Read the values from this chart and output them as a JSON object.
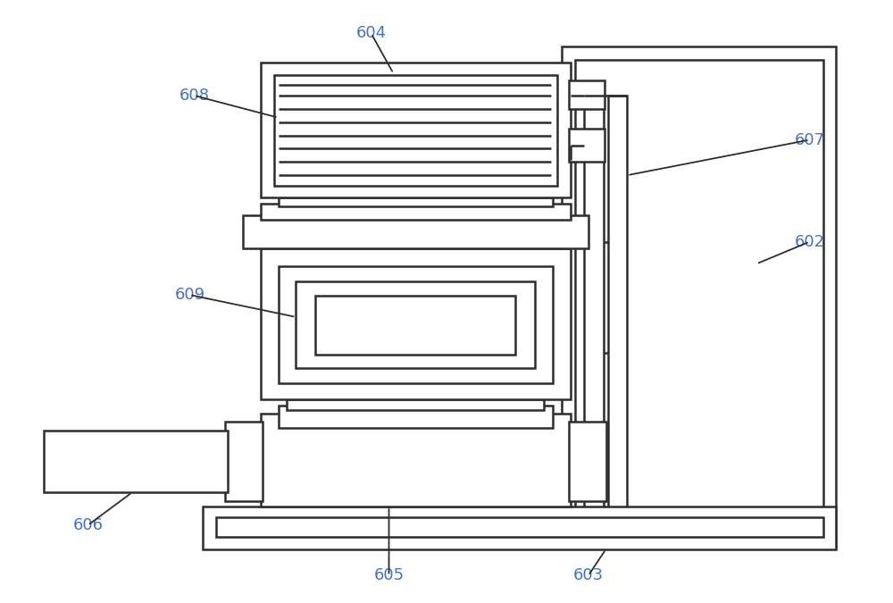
{
  "bg_color": "#ffffff",
  "line_color": "#2d2d2d",
  "label_color": "#4472c4",
  "lw": 1.8,
  "fig_w": 10.0,
  "fig_h": 6.75,
  "dpi": 100
}
